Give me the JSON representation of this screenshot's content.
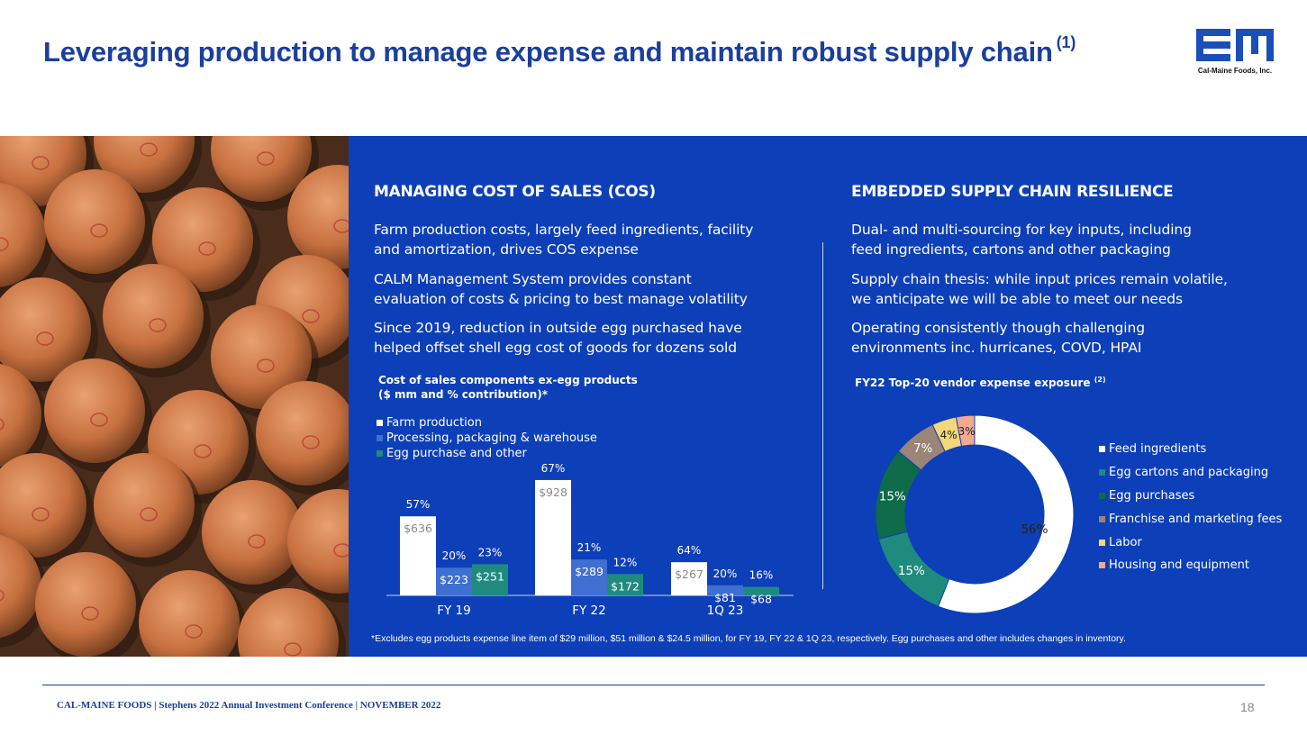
{
  "header": {
    "title": "Leveraging production to manage expense and maintain robust supply chain",
    "title_sup": "(1)",
    "logo_caption": "Cal-Maine Foods, Inc."
  },
  "left_col": {
    "heading": "MANAGING COST OF SALES (COS)",
    "paras": [
      [
        "Farm production costs, largely feed ingredients, facility",
        "and amortization, drives COS expense"
      ],
      [
        "CALM Management System provides constant",
        "evaluation of costs & pricing to best manage volatility"
      ],
      [
        "Since 2019, reduction in outside egg purchased have",
        "helped offset shell egg cost of goods for dozens sold"
      ]
    ]
  },
  "right_col": {
    "heading": "EMBEDDED SUPPLY CHAIN RESILIENCE",
    "paras": [
      [
        "Dual- and multi-sourcing for key inputs, including",
        "feed ingredients, cartons and other packaging"
      ],
      [
        "Supply chain thesis: while input prices remain volatile,",
        "we anticipate we will be able to meet our needs"
      ],
      [
        "Operating consistently though challenging",
        "environments inc. hurricanes, COVD, HPAI"
      ]
    ]
  },
  "chart_data": [
    {
      "type": "bar",
      "title": "Cost of sales components ex-egg products",
      "subtitle": "($ mm and % contribution)*",
      "categories": [
        "FY 19",
        "FY 22",
        "1Q 23"
      ],
      "series": [
        {
          "name": "Farm production",
          "color": "#ffffff",
          "values": [
            636,
            928,
            267
          ],
          "value_labels": [
            "$636",
            "$928",
            "$267"
          ],
          "pct_labels": [
            "57%",
            "67%",
            "64%"
          ]
        },
        {
          "name": "Processing, packaging & warehouse",
          "color": "#3f6fd0",
          "values": [
            223,
            289,
            81
          ],
          "value_labels": [
            "$223",
            "$289",
            "$81"
          ],
          "pct_labels": [
            "20%",
            "21%",
            "20%"
          ]
        },
        {
          "name": "Egg purchase and other",
          "color": "#1f8a7e",
          "values": [
            251,
            172,
            68
          ],
          "value_labels": [
            "$251",
            "$172",
            "$68"
          ],
          "pct_labels": [
            "23%",
            "12%",
            "16%"
          ]
        }
      ],
      "legend": "top-left"
    },
    {
      "type": "pie",
      "title": "FY22 Top-20 vendor expense exposure",
      "title_sup": "(2)",
      "slices": [
        {
          "name": "Feed ingredients",
          "value": 56,
          "label": "56%",
          "color": "#ffffff"
        },
        {
          "name": "Egg cartons and packaging",
          "value": 15,
          "label": "15%",
          "color": "#1f8a7e"
        },
        {
          "name": "Egg purchases",
          "value": 15,
          "label": "15%",
          "color": "#0e6b4a"
        },
        {
          "name": "Franchise and marketing fees",
          "value": 7,
          "label": "7%",
          "color": "#9b8478"
        },
        {
          "name": "Labor",
          "value": 4,
          "label": "4%",
          "color": "#f5d77a"
        },
        {
          "name": "Housing and equipment",
          "value": 3,
          "label": "3%",
          "color": "#f2a98f"
        }
      ],
      "legend": "right"
    }
  ],
  "footnote": "*Excludes egg products expense line item of $29 million, $51 million & $24.5 million, for FY 19, FY 22 & 1Q 23, respectively. Egg purchases and other includes changes in inventory.",
  "footer": {
    "text": "CAL-MAINE FOODS | Stephens 2022 Annual Investment Conference | NOVEMBER 2022",
    "page": "18"
  }
}
